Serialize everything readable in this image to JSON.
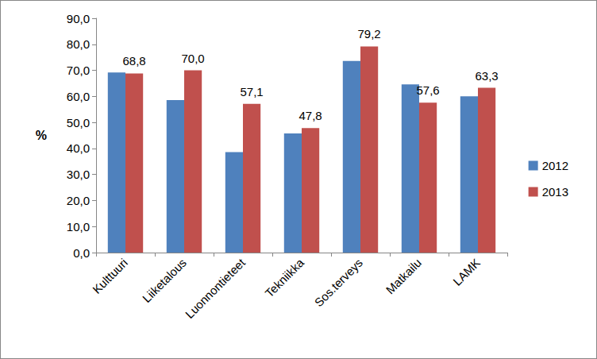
{
  "chart_data": {
    "type": "bar",
    "categories": [
      "Kulttuuri",
      "Liiketalous",
      "Luonnontieteet",
      "Tekniikka",
      "Sos.terveys",
      "Matkailu",
      "LAMK"
    ],
    "series": [
      {
        "name": "2012",
        "color": "#4f81bd",
        "values": [
          69.2,
          58.6,
          38.6,
          45.8,
          73.6,
          64.6,
          60.0
        ]
      },
      {
        "name": "2013",
        "color": "#c0504d",
        "values": [
          68.8,
          70.0,
          57.1,
          47.8,
          79.2,
          57.6,
          63.3
        ],
        "data_labels": true,
        "value_labels": [
          "68,8",
          "70,0",
          "57,1",
          "47,8",
          "79,2",
          "57,6",
          "63,3"
        ]
      }
    ],
    "y_label": "%",
    "ylim": [
      0,
      90
    ],
    "yticks": [
      {
        "value": 0,
        "label": "0,0"
      },
      {
        "value": 10,
        "label": "10,0"
      },
      {
        "value": 20,
        "label": "20,0"
      },
      {
        "value": 30,
        "label": "30,0"
      },
      {
        "value": 40,
        "label": "40,0"
      },
      {
        "value": 50,
        "label": "50,0"
      },
      {
        "value": 60,
        "label": "60,0"
      },
      {
        "value": 70,
        "label": "70,0"
      },
      {
        "value": 80,
        "label": "80,0"
      },
      {
        "value": 90,
        "label": "90,0"
      }
    ],
    "grid": false,
    "legend": "right"
  }
}
